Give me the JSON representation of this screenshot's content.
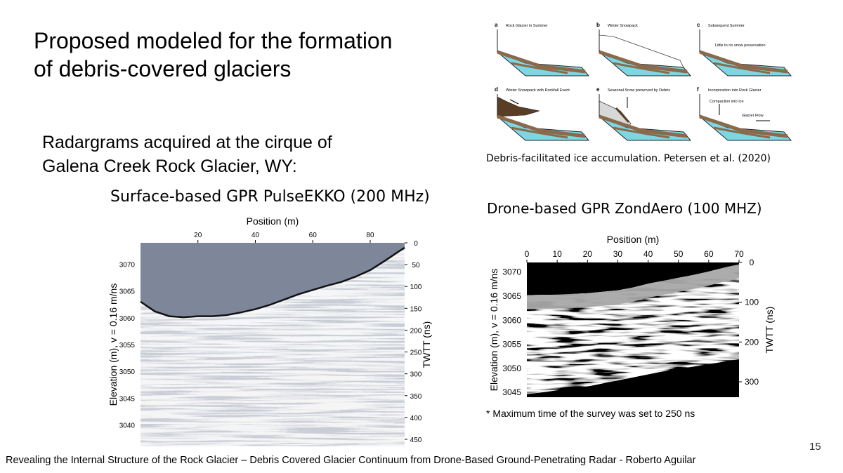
{
  "slide": {
    "title_line1": "Proposed modeled for the formation",
    "title_line2": "of debris-covered glaciers",
    "subtitle_line1": "Radargrams acquired at the cirque of",
    "subtitle_line2": "Galena Creek Rock Glacier, WY:",
    "page_number": "15",
    "footer": "Revealing the Internal Structure of the  Rock Glacier – Debris Covered Glacier Continuum  from Drone-Based Ground-Penetrating Radar - Roberto Aguilar"
  },
  "figure_panels": {
    "caption": "Debris-facilitated ice accumulation. Petersen et al. (2020)",
    "panels": [
      {
        "letter": "a",
        "label": "Rock Glacier in Summer"
      },
      {
        "letter": "b",
        "label": "Winter Snowpack"
      },
      {
        "letter": "c",
        "label": "Subsequent Summer",
        "label2": "Little to no snow preservation"
      },
      {
        "letter": "d",
        "label": "Winter Snowpack with Rockfall Event"
      },
      {
        "letter": "e",
        "label": "Seasonal Snow preserved by Debris"
      },
      {
        "letter": "f",
        "label": "Incorporation into Rock Glacier",
        "label2": "Compaction into Ice",
        "label3": "Glacier Flow"
      }
    ]
  },
  "chart_data": [
    {
      "type": "heatmap",
      "caption": "Surface-based GPR PulseEKKO (200 MHz)",
      "xlabel": "Position (m)",
      "ylabel": "Elevation (m), v = 0.16 m/ns",
      "y2label": "TWTT (ns)",
      "xticks": [
        "20",
        "40",
        "60",
        "80"
      ],
      "yticks": [
        "3070",
        "3065",
        "3060",
        "3055",
        "3050",
        "3045",
        "3040"
      ],
      "y2ticks": [
        "0",
        "50",
        "100",
        "150",
        "200",
        "250",
        "300",
        "350",
        "400",
        "450"
      ],
      "xlim": [
        0,
        92
      ],
      "ylim": [
        3036,
        3074
      ],
      "surface_profile": {
        "x": [
          0,
          5,
          10,
          15,
          20,
          25,
          30,
          35,
          40,
          45,
          50,
          55,
          60,
          65,
          70,
          75,
          80,
          85,
          90,
          92
        ],
        "y": [
          3063,
          3061.2,
          3060.3,
          3060.1,
          3060.3,
          3060.3,
          3060.5,
          3061,
          3061.6,
          3062.4,
          3063.4,
          3064.4,
          3065.2,
          3066,
          3066.7,
          3067.7,
          3068.9,
          3070.6,
          3072.4,
          3073.1
        ]
      }
    },
    {
      "type": "heatmap",
      "caption": "Drone-based GPR ZondAero (100 MHZ)",
      "xlabel": "Position (m)",
      "ylabel": "Elevation (m), v = 0.16 m/ns",
      "y2label": "TWTT (ns)",
      "xticks": [
        "0",
        "10",
        "20",
        "30",
        "40",
        "50",
        "60",
        "70"
      ],
      "yticks": [
        "3070",
        "3065",
        "3060",
        "3055",
        "3050",
        "3045"
      ],
      "y2ticks": [
        "0",
        "100",
        "200",
        "300"
      ],
      "xlim": [
        0,
        70
      ],
      "ylim": [
        3044,
        3072
      ],
      "surface_profile": {
        "x": [
          0,
          10,
          20,
          30,
          35,
          40,
          45,
          50,
          55,
          60,
          65,
          70
        ],
        "y": [
          3065.2,
          3065.3,
          3065.6,
          3066.2,
          3066.8,
          3067.6,
          3068.2,
          3068.8,
          3069.4,
          3070.1,
          3070.9,
          3071.6
        ]
      },
      "note": "* Maximum time of the survey was set to 250 ns"
    }
  ]
}
